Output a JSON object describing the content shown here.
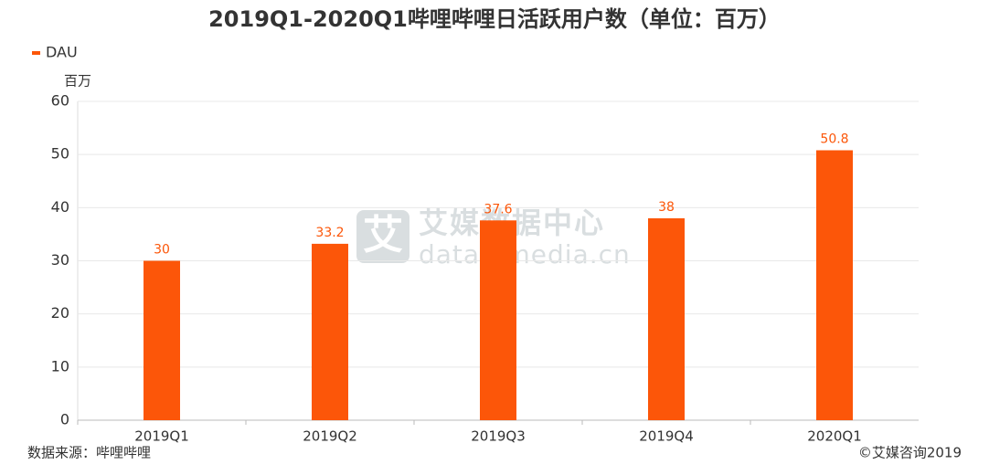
{
  "chart_data": {
    "type": "bar",
    "title": "2019Q1-2020Q1哔哩哔哩日活跃用户数（单位：百万）",
    "y_label": "百万",
    "categories": [
      "2019Q1",
      "2019Q2",
      "2019Q3",
      "2019Q4",
      "2020Q1"
    ],
    "series": [
      {
        "name": "DAU",
        "color": "#fc5609",
        "values": [
          30,
          33.2,
          37.6,
          38,
          50.8
        ]
      }
    ],
    "ylim": [
      0,
      60
    ],
    "yticks": [
      0,
      10,
      20,
      30,
      40,
      50,
      60
    ],
    "grid": true,
    "legend": "top-left"
  },
  "source": "数据来源：哔哩哔哩",
  "copyright": "©艾媒咨询2019",
  "watermark": {
    "logo": "艾",
    "name": "艾媒数据中心",
    "url": "data.iimedia.cn"
  }
}
